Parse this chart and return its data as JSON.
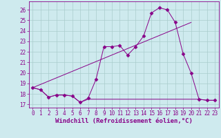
{
  "xlabel": "Windchill (Refroidissement éolien,°C)",
  "xlim": [
    -0.5,
    23.5
  ],
  "ylim": [
    16.7,
    26.8
  ],
  "xticks": [
    0,
    1,
    2,
    3,
    4,
    5,
    6,
    7,
    8,
    9,
    10,
    11,
    12,
    13,
    14,
    15,
    16,
    17,
    18,
    19,
    20,
    21,
    22,
    23
  ],
  "yticks": [
    17,
    18,
    19,
    20,
    21,
    22,
    23,
    24,
    25,
    26
  ],
  "bg_color": "#ceeaee",
  "line_color": "#880088",
  "grid_color": "#aacccc",
  "line1_x": [
    0,
    1,
    2,
    3,
    4,
    5,
    6,
    7,
    8,
    9,
    10,
    11,
    12,
    13,
    14,
    15,
    16,
    17,
    18,
    19,
    20,
    21,
    22,
    23
  ],
  "line1_y": [
    18.6,
    18.4,
    17.7,
    17.9,
    17.9,
    17.8,
    17.2,
    17.6,
    19.4,
    22.5,
    22.5,
    22.6,
    21.7,
    22.5,
    23.5,
    25.7,
    26.2,
    26.0,
    24.8,
    21.8,
    20.0,
    17.5,
    17.4,
    17.4
  ],
  "line2_x": [
    0,
    1,
    2,
    3,
    4,
    5,
    6,
    7,
    8,
    9,
    10,
    11,
    12,
    13,
    14,
    15,
    16,
    17,
    18,
    19,
    20,
    21,
    22,
    23
  ],
  "line2_y": [
    18.6,
    18.4,
    17.7,
    17.9,
    17.9,
    17.8,
    17.2,
    17.5,
    17.5,
    17.5,
    17.5,
    17.5,
    17.5,
    17.5,
    17.5,
    17.5,
    17.5,
    17.5,
    17.5,
    17.5,
    17.5,
    17.5,
    17.4,
    17.4
  ],
  "line3_x": [
    0,
    20
  ],
  "line3_y": [
    18.6,
    24.8
  ],
  "tick_fontsize": 5.5,
  "xlabel_fontsize": 6.5
}
